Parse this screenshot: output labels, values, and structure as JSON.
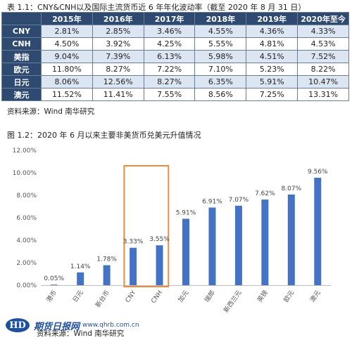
{
  "table1": {
    "caption": "表 1.1：CNY&CNH以及国际主流货币近 6 年年化波动率（截至 2020 年 8 月 31 日）",
    "headers": [
      "",
      "2015年",
      "2016年",
      "2017年",
      "2018年",
      "2019年",
      "2020年至今"
    ],
    "rows": [
      {
        "label": "CNY",
        "values": [
          "2.81%",
          "2.85%",
          "3.46%",
          "4.55%",
          "4.36%",
          "4.33%"
        ]
      },
      {
        "label": "CNH",
        "values": [
          "4.50%",
          "3.92%",
          "4.25%",
          "5.55%",
          "4.81%",
          "4.53%"
        ]
      },
      {
        "label": "美指",
        "values": [
          "9.04%",
          "7.39%",
          "6.13%",
          "5.98%",
          "4.51%",
          "7.52%"
        ]
      },
      {
        "label": "欧元",
        "values": [
          "11.80%",
          "8.27%",
          "7.22%",
          "7.10%",
          "5.23%",
          "8.22%"
        ]
      },
      {
        "label": "日元",
        "values": [
          "8.06%",
          "12.56%",
          "8.27%",
          "6.35%",
          "5.91%",
          "10.47%"
        ]
      },
      {
        "label": "澳元",
        "values": [
          "11.52%",
          "11.41%",
          "7.55%",
          "8.56%",
          "7.25%",
          "13.31%"
        ]
      }
    ],
    "source": "资料来源：Wind 南华研究"
  },
  "chart_data": {
    "type": "bar",
    "title": "图 1.2：2020 年 6 月以来主要非美货币兑美元升值情况",
    "categories": [
      "港币",
      "日元",
      "新台币",
      "CNY",
      "CNH",
      "加元",
      "瑞郎",
      "新西兰元",
      "英镑",
      "欧元",
      "澳元"
    ],
    "values": [
      0.05,
      1.14,
      1.78,
      3.33,
      3.55,
      5.91,
      6.91,
      7.07,
      7.62,
      8.07,
      9.56
    ],
    "data_labels": [
      "0.05%",
      "1.14%",
      "1.78%",
      "3.33%",
      "3.55%",
      "5.91%",
      "6.91%",
      "7.07%",
      "7.62%",
      "8.07%",
      "9.56%"
    ],
    "yticks": [
      "0.00%",
      "2.00%",
      "4.00%",
      "6.00%",
      "8.00%",
      "10.00%",
      "12.00%"
    ],
    "ylim": [
      0,
      12
    ],
    "bar_color": "#4472c4",
    "highlight_box_color": "#ed8c3a",
    "highlight_categories": [
      "CNY",
      "CNH"
    ],
    "grid": false,
    "source": "资料来源：Wind 南华研究"
  },
  "watermark": {
    "mark": "HD",
    "site": "期货日报网",
    "url": "www.qhrb.com.cn"
  }
}
